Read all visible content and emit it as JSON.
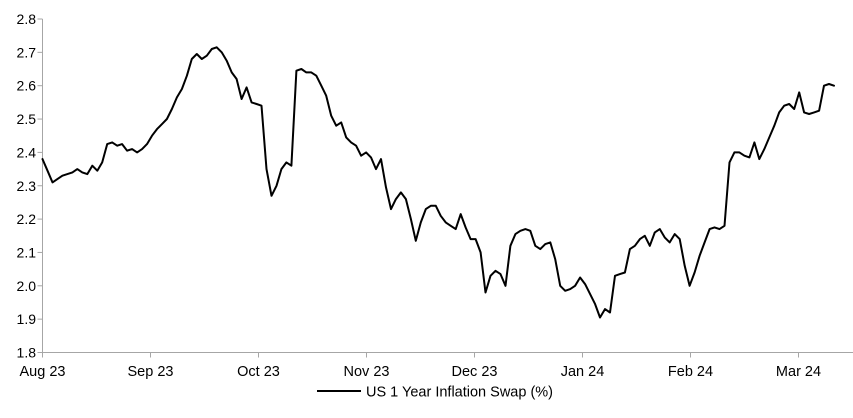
{
  "chart_data": {
    "type": "line",
    "title": "",
    "legend": "US 1 Year Inflation Swap (%)",
    "grid": "off",
    "legend_position": "bottom-center",
    "ylim": [
      1.8,
      2.8
    ],
    "y_tick_labels": [
      "2.8",
      "2.7",
      "2.6",
      "2.5",
      "2.4",
      "2.3",
      "2.2",
      "2.1",
      "2.0",
      "1.9",
      "1.8"
    ],
    "x_tick_labels": [
      "Aug 23",
      "Sep 23",
      "Oct 23",
      "Nov 23",
      "Dec 23",
      "Jan 24",
      "Feb 24",
      "Mar 24"
    ],
    "colors": {
      "line": "#000000",
      "axis": "#a6a6a6",
      "text": "#000000",
      "background": "#ffffff"
    },
    "series": [
      {
        "name": "US 1 Year Inflation Swap (%)",
        "values": [
          2.38,
          2.345,
          2.31,
          2.32,
          2.33,
          2.335,
          2.34,
          2.35,
          2.34,
          2.335,
          2.36,
          2.345,
          2.37,
          2.425,
          2.43,
          2.42,
          2.425,
          2.405,
          2.41,
          2.4,
          2.41,
          2.425,
          2.45,
          2.47,
          2.485,
          2.5,
          2.53,
          2.565,
          2.59,
          2.63,
          2.68,
          2.695,
          2.68,
          2.69,
          2.71,
          2.715,
          2.7,
          2.675,
          2.64,
          2.62,
          2.56,
          2.595,
          2.55,
          2.545,
          2.54,
          2.35,
          2.27,
          2.3,
          2.35,
          2.37,
          2.36,
          2.645,
          2.65,
          2.64,
          2.64,
          2.63,
          2.6,
          2.57,
          2.51,
          2.48,
          2.49,
          2.445,
          2.43,
          2.42,
          2.39,
          2.4,
          2.385,
          2.35,
          2.38,
          2.295,
          2.23,
          2.26,
          2.28,
          2.26,
          2.2,
          2.135,
          2.19,
          2.23,
          2.24,
          2.24,
          2.21,
          2.19,
          2.18,
          2.17,
          2.215,
          2.175,
          2.14,
          2.14,
          2.1,
          1.98,
          2.03,
          2.045,
          2.035,
          2.0,
          2.12,
          2.155,
          2.165,
          2.17,
          2.165,
          2.12,
          2.11,
          2.125,
          2.13,
          2.08,
          2.0,
          1.985,
          1.99,
          2.0,
          2.025,
          2.005,
          1.975,
          1.945,
          1.905,
          1.93,
          1.92,
          2.03,
          2.035,
          2.04,
          2.11,
          2.12,
          2.14,
          2.15,
          2.12,
          2.16,
          2.17,
          2.145,
          2.13,
          2.155,
          2.14,
          2.06,
          2.0,
          2.04,
          2.09,
          2.13,
          2.17,
          2.175,
          2.17,
          2.18,
          2.37,
          2.4,
          2.4,
          2.39,
          2.385,
          2.43,
          2.38,
          2.41,
          2.445,
          2.48,
          2.52,
          2.54,
          2.545,
          2.53,
          2.58,
          2.52,
          2.515,
          2.52,
          2.525,
          2.6,
          2.605,
          2.6
        ]
      }
    ]
  }
}
